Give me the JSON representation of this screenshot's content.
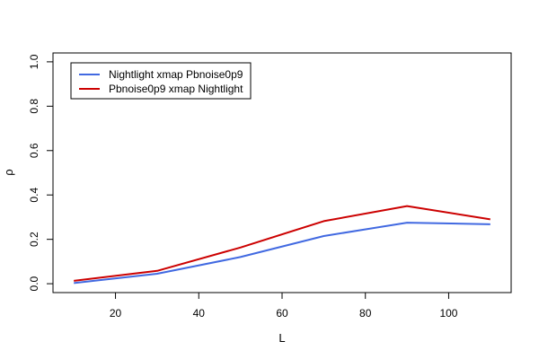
{
  "chart_data": {
    "type": "line",
    "title": "",
    "xlabel": "L",
    "ylabel": "ρ",
    "xlim": [
      5,
      115
    ],
    "ylim": [
      -0.04,
      1.04
    ],
    "xticks": [
      20,
      40,
      60,
      80,
      100
    ],
    "yticks": [
      0.0,
      0.2,
      0.4,
      0.6,
      0.8,
      1.0
    ],
    "ytick_labels": [
      "0.0",
      "0.2",
      "0.4",
      "0.6",
      "0.8",
      "1.0"
    ],
    "x": [
      10,
      30,
      50,
      70,
      90,
      110
    ],
    "grid": false,
    "legend_position": "top-left",
    "series": [
      {
        "name": "Nightlight xmap Pbnoise0p9",
        "color": "#4169e1",
        "values": [
          0.003,
          0.045,
          0.12,
          0.215,
          0.275,
          0.268
        ]
      },
      {
        "name": "Pbnoise0p9 xmap Nightlight",
        "color": "#cc0000",
        "values": [
          0.013,
          0.058,
          0.163,
          0.282,
          0.35,
          0.29
        ]
      }
    ]
  }
}
